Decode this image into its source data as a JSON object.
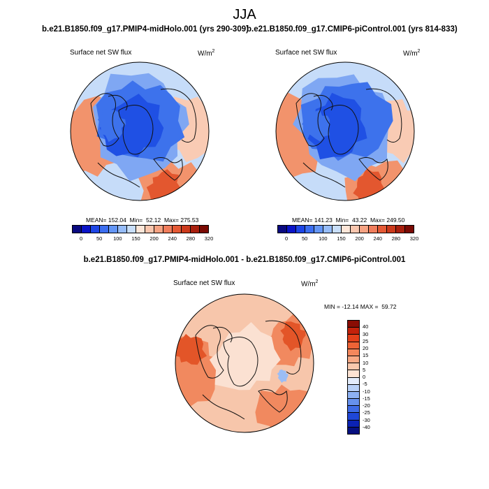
{
  "season": "JJA",
  "panels": [
    {
      "title": "b.e21.B1850.f09_g17.PMIP4-midHolo.001 (yrs 290-309)",
      "variable": "Surface net SW flux",
      "units_base": "W/m",
      "units_exp": "2",
      "stats": "MEAN= 152.04  Min=  52.12  Max= 275.53"
    },
    {
      "title": "b.e21.B1850.f09_g17.CMIP6-piControl.001 (yrs 814-833)",
      "variable": "Surface net SW flux",
      "units_base": "W/m",
      "units_exp": "2",
      "stats": "MEAN= 141.23  Min=  43.22  Max= 249.50"
    }
  ],
  "abs_colorbar": {
    "colors": [
      "#0a0a80",
      "#0a14c8",
      "#1e46e6",
      "#3c6ef0",
      "#6496f5",
      "#96bcf8",
      "#c8def9",
      "#fde6d8",
      "#f9c6ae",
      "#f6a383",
      "#f07d5c",
      "#e55a36",
      "#cc3a1c",
      "#a81f0d",
      "#7a0a03"
    ],
    "tick_labels": [
      "0",
      "50",
      "100",
      "150",
      "200",
      "240",
      "280",
      "320"
    ],
    "tick_edges": [
      1,
      3,
      5,
      7,
      9,
      11,
      13,
      15
    ]
  },
  "diff": {
    "title": "b.e21.B1850.f09_g17.PMIP4-midHolo.001 - b.e21.B1850.f09_g17.CMIP6-piControl.001",
    "variable": "Surface net SW flux",
    "units_base": "W/m",
    "units_exp": "2",
    "stats": "MIN = -12.14 MAX =  59.72",
    "colorbar": {
      "colors_top_to_bottom": [
        "#8a0d04",
        "#c3220b",
        "#e2401a",
        "#ee6336",
        "#f4875c",
        "#f8a985",
        "#fac8ad",
        "#fde3d3",
        "#e3ecfb",
        "#b9d1f7",
        "#8eb2f3",
        "#6691ee",
        "#3e6be6",
        "#1f47d8",
        "#0b22b4",
        "#061080"
      ],
      "labels_top_to_bottom": [
        "40",
        "30",
        "25",
        "20",
        "15",
        "10",
        "5",
        "0",
        "-5",
        "-10",
        "-15",
        "-20",
        "-25",
        "-30",
        "-40"
      ]
    }
  },
  "map_colors": {
    "abs_deep": "#1f50e4",
    "abs_mid": "#3d72ec",
    "abs_light": "#7fa7f3",
    "abs_pale": "#c6dcf9",
    "abs_peach": "#f9cbb4",
    "abs_warm": "#f2936c",
    "abs_hot": "#e3572f",
    "diff_base": "#f7c6ab",
    "diff_pale": "#fbe1d2",
    "diff_warm": "#f1895f",
    "diff_hot": "#e35528",
    "diff_blue": "#9cbdf5"
  }
}
